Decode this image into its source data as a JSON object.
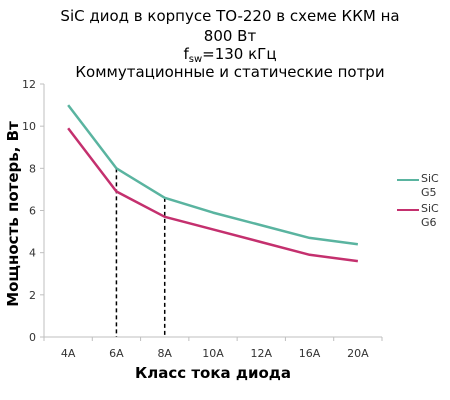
{
  "title": {
    "line1": "SiC диод в корпусе TO-220 в схеме ККМ на",
    "line2": "800 Вт",
    "line3_main": "f",
    "line3_sub": "sw",
    "line3_rest": "=130 кГц",
    "line4": "Коммутационные и статические потри"
  },
  "chart_data": {
    "type": "line",
    "categories": [
      "4A",
      "6A",
      "8A",
      "10A",
      "12A",
      "16A",
      "20A"
    ],
    "xlabel": "Класс тока диода",
    "ylabel": "Мощность потерь, Вт",
    "ylim": [
      0,
      12
    ],
    "yticks": [
      0,
      2,
      4,
      6,
      8,
      10,
      12
    ],
    "grid": false,
    "legend_position": "right",
    "series": [
      {
        "name": "SiC G5",
        "label_lines": [
          "SiC",
          "G5"
        ],
        "color": "#5ab4a0",
        "values": [
          11.0,
          8.0,
          6.6,
          5.9,
          5.3,
          4.7,
          4.4
        ]
      },
      {
        "name": "SiC G6",
        "label_lines": [
          "SiC",
          "G6"
        ],
        "color": "#c4306e",
        "values": [
          9.9,
          6.9,
          5.7,
          5.1,
          4.5,
          3.9,
          3.6
        ]
      }
    ],
    "annotations": [
      {
        "type": "dashed-vertical",
        "category": "6A",
        "to_series": "SiC G5"
      },
      {
        "type": "dashed-vertical",
        "category": "8A",
        "to_series": "SiC G5"
      }
    ]
  }
}
